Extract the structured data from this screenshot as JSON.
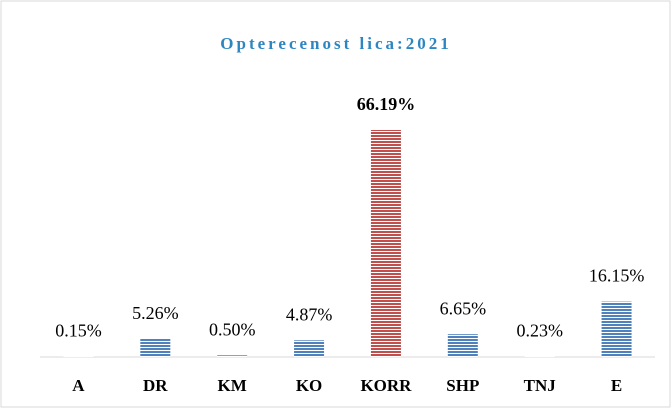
{
  "chart_data": {
    "type": "bar",
    "title": "Opterecenost lica:2021",
    "categories": [
      "A",
      "DR",
      "KM",
      "KO",
      "KORR",
      "SHP",
      "TNJ",
      "E"
    ],
    "values": [
      0.15,
      5.26,
      0.5,
      4.87,
      66.19,
      6.65,
      0.23,
      16.15
    ],
    "value_labels": [
      "0.15%",
      "5.26%",
      "0.50%",
      "4.87%",
      "66.19%",
      "6.65%",
      "0.23%",
      "16.15%"
    ],
    "colors": [
      "#4f81bd",
      "#4f81bd",
      "#4f81bd",
      "#4f81bd",
      "#c0504d",
      "#4f81bd",
      "#4f81bd",
      "#4f81bd"
    ]
  }
}
